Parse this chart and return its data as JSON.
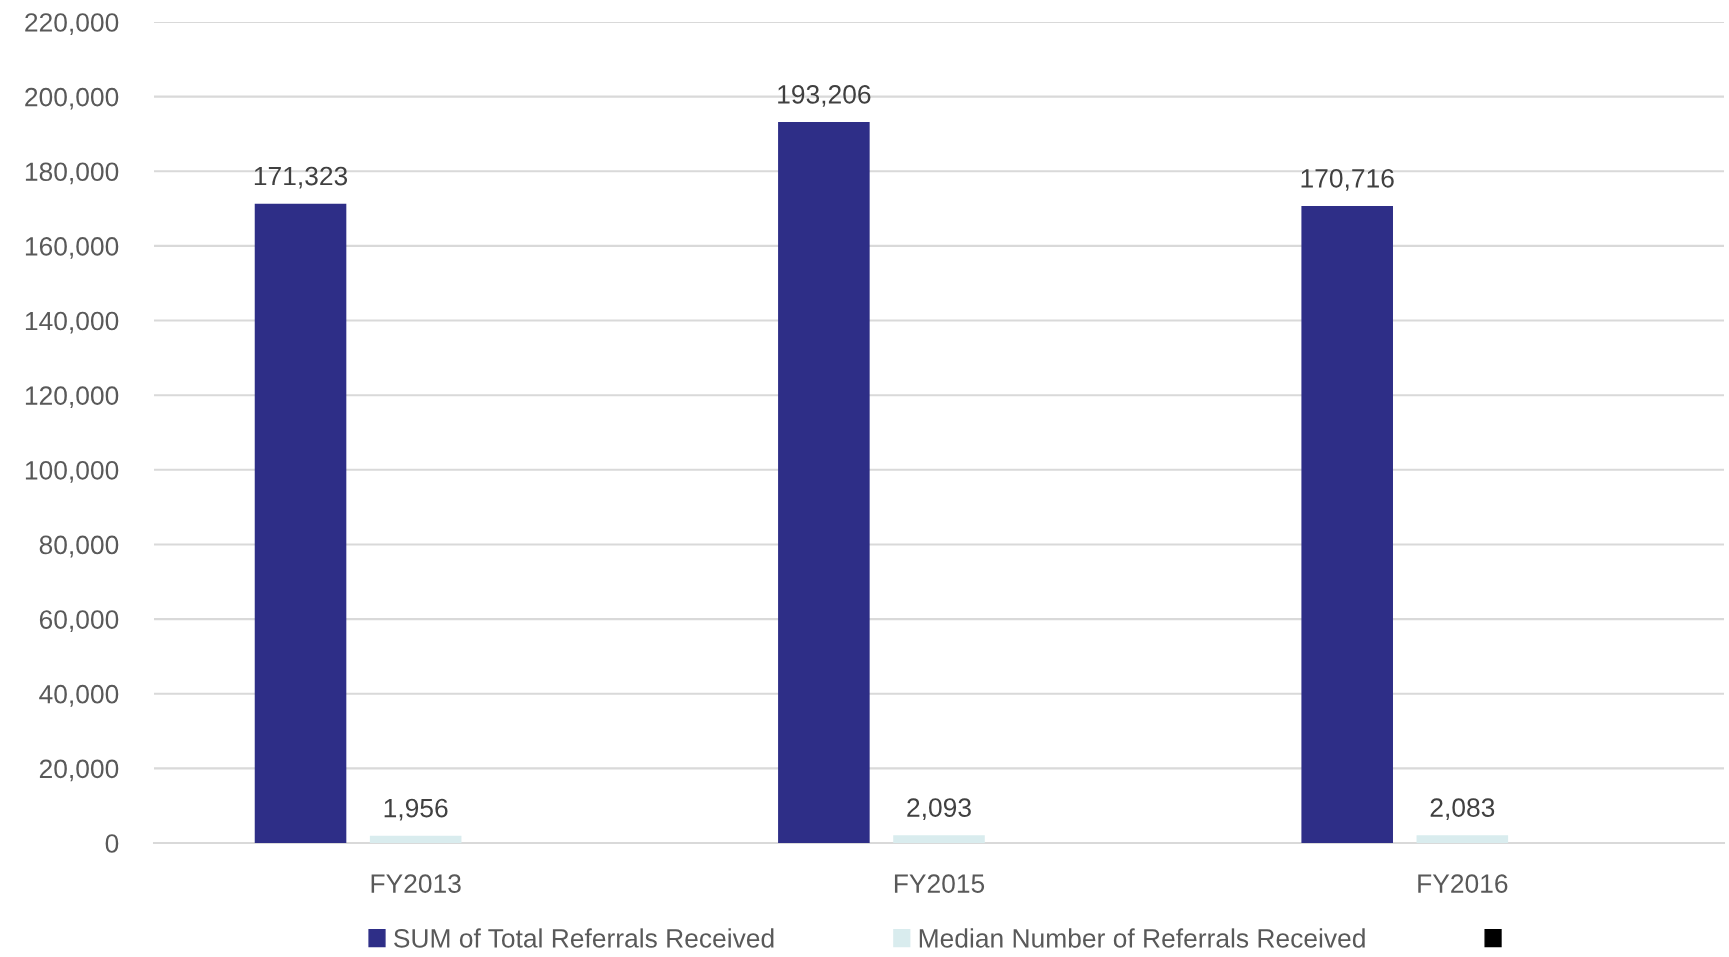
{
  "chart_data": {
    "type": "bar",
    "categories": [
      "FY2013",
      "FY2015",
      "FY2016"
    ],
    "series": [
      {
        "name": "SUM of Total Referrals Received",
        "color": "#2e2e87",
        "values": [
          171323,
          193206,
          170716
        ],
        "value_labels": [
          "171,323",
          "193,206",
          "170,716"
        ]
      },
      {
        "name": "Median Number of Referrals Received",
        "color": "#d9ecee",
        "values": [
          1956,
          2093,
          2083
        ],
        "value_labels": [
          "1,956",
          "2,093",
          "2,083"
        ]
      },
      {
        "color": "#000000",
        "values": [
          null,
          null,
          null
        ]
      }
    ],
    "ylim": [
      0,
      220000
    ],
    "yticks": [
      {
        "value": 0,
        "label": "0"
      },
      {
        "value": 20000,
        "label": "20,000"
      },
      {
        "value": 40000,
        "label": "40,000"
      },
      {
        "value": 60000,
        "label": "60,000"
      },
      {
        "value": 80000,
        "label": "80,000"
      },
      {
        "value": 100000,
        "label": "100,000"
      },
      {
        "value": 120000,
        "label": "120,000"
      },
      {
        "value": 140000,
        "label": "140,000"
      },
      {
        "value": 160000,
        "label": "160,000"
      },
      {
        "value": 180000,
        "label": "180,000"
      },
      {
        "value": 200000,
        "label": "200,000"
      },
      {
        "value": 220000,
        "label": "220,000"
      }
    ],
    "grid": "y",
    "legend": "bottom"
  }
}
